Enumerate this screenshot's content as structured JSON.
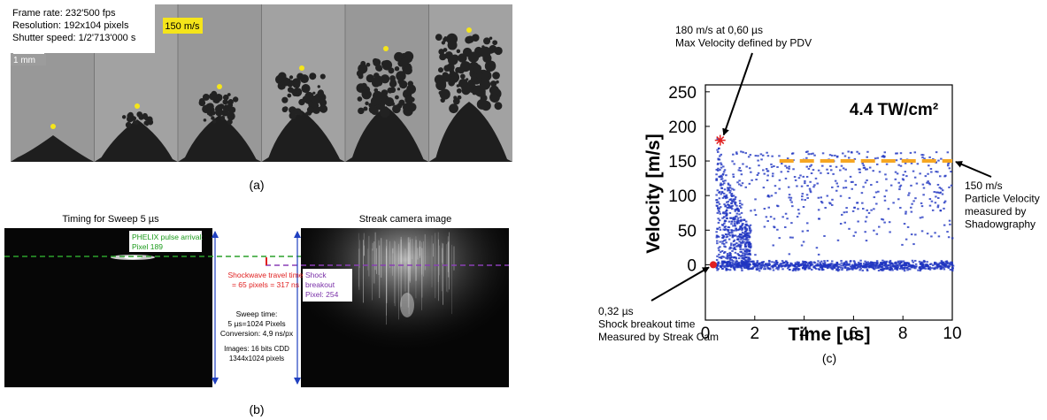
{
  "panel_a": {
    "info": [
      "Frame rate: 232'500 fps",
      "Resolution: 192x104 pixels",
      "Shutter speed: 1/2'713'000 s"
    ],
    "scale_bar": "1 mm",
    "velocity_tag": "150 m/s",
    "caption": "(a)"
  },
  "panel_b": {
    "left_title": "Timing for Sweep 5 µs",
    "right_title": "Streak camera image",
    "phelix": [
      "PHELIX pulse arrival:",
      "Pixel 189"
    ],
    "travel_time": [
      "Shockwave travel time",
      "= 65 pixels = 317 ns"
    ],
    "breakout": [
      "Shock",
      "breakout",
      "Pixel: 254"
    ],
    "sweep": [
      "Sweep time:",
      "5 µs=1024 Pixels",
      "Conversion: 4,9 ns/px"
    ],
    "images": [
      "Images: 16 bits CDD",
      "1344x1024 pixels"
    ],
    "caption": "(b)"
  },
  "chart_data": {
    "type": "scatter",
    "title": "4.4 TW/cm²",
    "x_label": "Time [us]",
    "y_label": "Velocity [m/s]",
    "xlim": [
      0,
      10
    ],
    "ylim": [
      -80,
      260
    ],
    "xticks": [
      0,
      2,
      4,
      6,
      8,
      10
    ],
    "yticks": [
      0,
      50,
      100,
      150,
      200,
      250
    ],
    "points": {
      "x": [
        0.6,
        0.32
      ],
      "values": [
        180,
        0
      ],
      "color": "#e02020"
    },
    "reference_line": {
      "x": [
        3,
        10
      ],
      "values": [
        150,
        150
      ],
      "color": "#f5a623"
    },
    "annotations": [
      [
        "180 m/s at 0,60 µs",
        "Max Velocity defined by PDV"
      ],
      [
        "150 m/s",
        "Particle Velocity",
        "measured by",
        "Shadowgraphy"
      ],
      [
        "0,32 µs",
        "Shock breakout time",
        "Measured by Streak Cam"
      ]
    ],
    "caption": "(c)"
  }
}
